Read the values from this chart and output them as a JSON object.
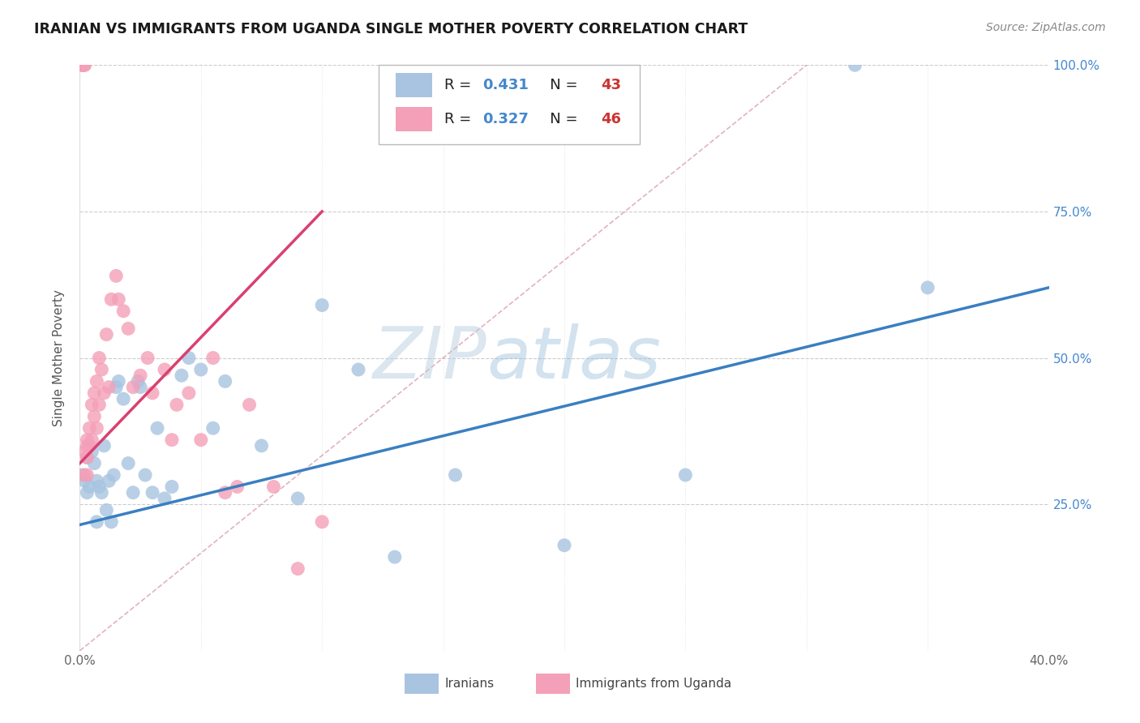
{
  "title": "IRANIAN VS IMMIGRANTS FROM UGANDA SINGLE MOTHER POVERTY CORRELATION CHART",
  "source": "Source: ZipAtlas.com",
  "ylabel": "Single Mother Poverty",
  "watermark": "ZIPatlas",
  "xlim": [
    0.0,
    0.4
  ],
  "ylim": [
    0.0,
    1.0
  ],
  "blue_R": 0.431,
  "blue_N": 43,
  "pink_R": 0.327,
  "pink_N": 46,
  "blue_color": "#a8c4e0",
  "pink_color": "#f4a0b8",
  "blue_line_color": "#3a7fc1",
  "pink_line_color": "#d94070",
  "legend_R_color": "#4488cc",
  "legend_N_color": "#cc3333",
  "ref_line_color": "#d08090",
  "background_color": "#ffffff",
  "grid_color": "#cccccc",
  "blue_scatter_x": [
    0.001,
    0.002,
    0.003,
    0.003,
    0.004,
    0.005,
    0.006,
    0.007,
    0.007,
    0.008,
    0.009,
    0.01,
    0.011,
    0.012,
    0.013,
    0.014,
    0.015,
    0.016,
    0.018,
    0.02,
    0.022,
    0.024,
    0.025,
    0.027,
    0.03,
    0.032,
    0.035,
    0.038,
    0.042,
    0.045,
    0.05,
    0.055,
    0.06,
    0.075,
    0.09,
    0.1,
    0.115,
    0.13,
    0.155,
    0.2,
    0.25,
    0.32,
    0.35
  ],
  "blue_scatter_y": [
    0.3,
    0.29,
    0.33,
    0.27,
    0.28,
    0.34,
    0.32,
    0.22,
    0.29,
    0.28,
    0.27,
    0.35,
    0.24,
    0.29,
    0.22,
    0.3,
    0.45,
    0.46,
    0.43,
    0.32,
    0.27,
    0.46,
    0.45,
    0.3,
    0.27,
    0.38,
    0.26,
    0.28,
    0.47,
    0.5,
    0.48,
    0.38,
    0.46,
    0.35,
    0.26,
    0.59,
    0.48,
    0.16,
    0.3,
    0.18,
    0.3,
    1.0,
    0.62
  ],
  "pink_scatter_x": [
    0.001,
    0.001,
    0.001,
    0.002,
    0.002,
    0.002,
    0.002,
    0.003,
    0.003,
    0.003,
    0.003,
    0.004,
    0.004,
    0.005,
    0.005,
    0.006,
    0.006,
    0.007,
    0.007,
    0.008,
    0.008,
    0.009,
    0.01,
    0.011,
    0.012,
    0.013,
    0.015,
    0.016,
    0.018,
    0.02,
    0.022,
    0.025,
    0.028,
    0.03,
    0.035,
    0.038,
    0.04,
    0.045,
    0.05,
    0.055,
    0.06,
    0.065,
    0.07,
    0.08,
    0.09,
    0.1
  ],
  "pink_scatter_y": [
    1.0,
    1.0,
    1.0,
    1.0,
    1.0,
    0.34,
    0.3,
    0.36,
    0.33,
    0.3,
    0.35,
    0.38,
    0.35,
    0.42,
    0.36,
    0.44,
    0.4,
    0.46,
    0.38,
    0.5,
    0.42,
    0.48,
    0.44,
    0.54,
    0.45,
    0.6,
    0.64,
    0.6,
    0.58,
    0.55,
    0.45,
    0.47,
    0.5,
    0.44,
    0.48,
    0.36,
    0.42,
    0.44,
    0.36,
    0.5,
    0.27,
    0.28,
    0.42,
    0.28,
    0.14,
    0.22
  ]
}
